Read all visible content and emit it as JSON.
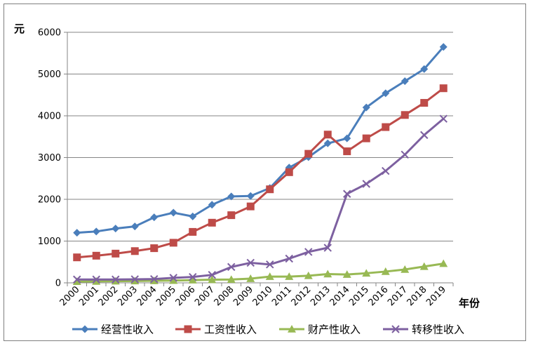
{
  "chart_data": {
    "type": "line",
    "title": "",
    "ylabel": "元",
    "xlabel": "年份",
    "ylim": [
      0,
      6000
    ],
    "yticks": [
      0,
      1000,
      2000,
      3000,
      4000,
      5000,
      6000
    ],
    "grid": true,
    "legend_position": "bottom",
    "categories": [
      "2000",
      "2001",
      "2002",
      "2003",
      "2004",
      "2005",
      "2006",
      "2007",
      "2008",
      "2009",
      "2010",
      "2011",
      "2012",
      "2013",
      "2014",
      "2015",
      "2016",
      "2017",
      "2018",
      "2019"
    ],
    "series": [
      {
        "name": "经营性收入",
        "color": "#4a7ebb",
        "marker": "diamond",
        "values": [
          1200,
          1230,
          1300,
          1350,
          1570,
          1680,
          1590,
          1870,
          2070,
          2080,
          2270,
          2760,
          3010,
          3340,
          3460,
          4200,
          4540,
          4830,
          5120,
          5650
        ]
      },
      {
        "name": "工资性收入",
        "color": "#be4b48",
        "marker": "square",
        "values": [
          610,
          650,
          700,
          760,
          830,
          960,
          1220,
          1440,
          1620,
          1830,
          2240,
          2650,
          3090,
          3550,
          3150,
          3460,
          3730,
          4020,
          4310,
          4660
        ]
      },
      {
        "name": "财产性收入",
        "color": "#98b954",
        "marker": "triangle",
        "values": [
          30,
          35,
          40,
          45,
          50,
          55,
          65,
          75,
          80,
          100,
          150,
          150,
          170,
          210,
          200,
          230,
          270,
          320,
          390,
          460
        ]
      },
      {
        "name": "转移性收入",
        "color": "#7d60a0",
        "marker": "x",
        "values": [
          80,
          80,
          80,
          85,
          90,
          120,
          140,
          190,
          380,
          480,
          440,
          580,
          740,
          840,
          2130,
          2370,
          2680,
          3070,
          3540,
          3930
        ]
      }
    ]
  }
}
